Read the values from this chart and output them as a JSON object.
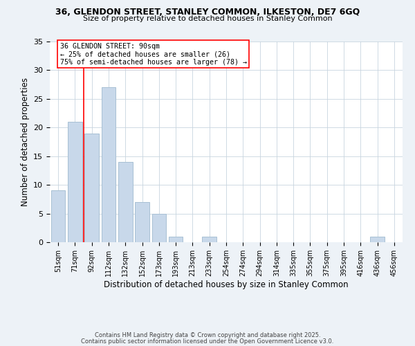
{
  "title1": "36, GLENDON STREET, STANLEY COMMON, ILKESTON, DE7 6GQ",
  "title2": "Size of property relative to detached houses in Stanley Common",
  "xlabel": "Distribution of detached houses by size in Stanley Common",
  "ylabel": "Number of detached properties",
  "bar_labels": [
    "51sqm",
    "71sqm",
    "92sqm",
    "112sqm",
    "132sqm",
    "152sqm",
    "173sqm",
    "193sqm",
    "213sqm",
    "233sqm",
    "254sqm",
    "274sqm",
    "294sqm",
    "314sqm",
    "335sqm",
    "355sqm",
    "375sqm",
    "395sqm",
    "416sqm",
    "436sqm",
    "456sqm"
  ],
  "bar_values": [
    9,
    21,
    19,
    27,
    14,
    7,
    5,
    1,
    0,
    1,
    0,
    0,
    0,
    0,
    0,
    0,
    0,
    0,
    0,
    1,
    0
  ],
  "bar_color": "#c8d8ea",
  "bar_edge_color": "#a8c0d4",
  "redline_index": 2,
  "annotation_text": "36 GLENDON STREET: 90sqm\n← 25% of detached houses are smaller (26)\n75% of semi-detached houses are larger (78) →",
  "ylim": [
    0,
    35
  ],
  "yticks": [
    0,
    5,
    10,
    15,
    20,
    25,
    30,
    35
  ],
  "background_color": "#edf2f7",
  "plot_bg_color": "#ffffff",
  "grid_color": "#c8d4df",
  "footer1": "Contains HM Land Registry data © Crown copyright and database right 2025.",
  "footer2": "Contains public sector information licensed under the Open Government Licence v3.0."
}
